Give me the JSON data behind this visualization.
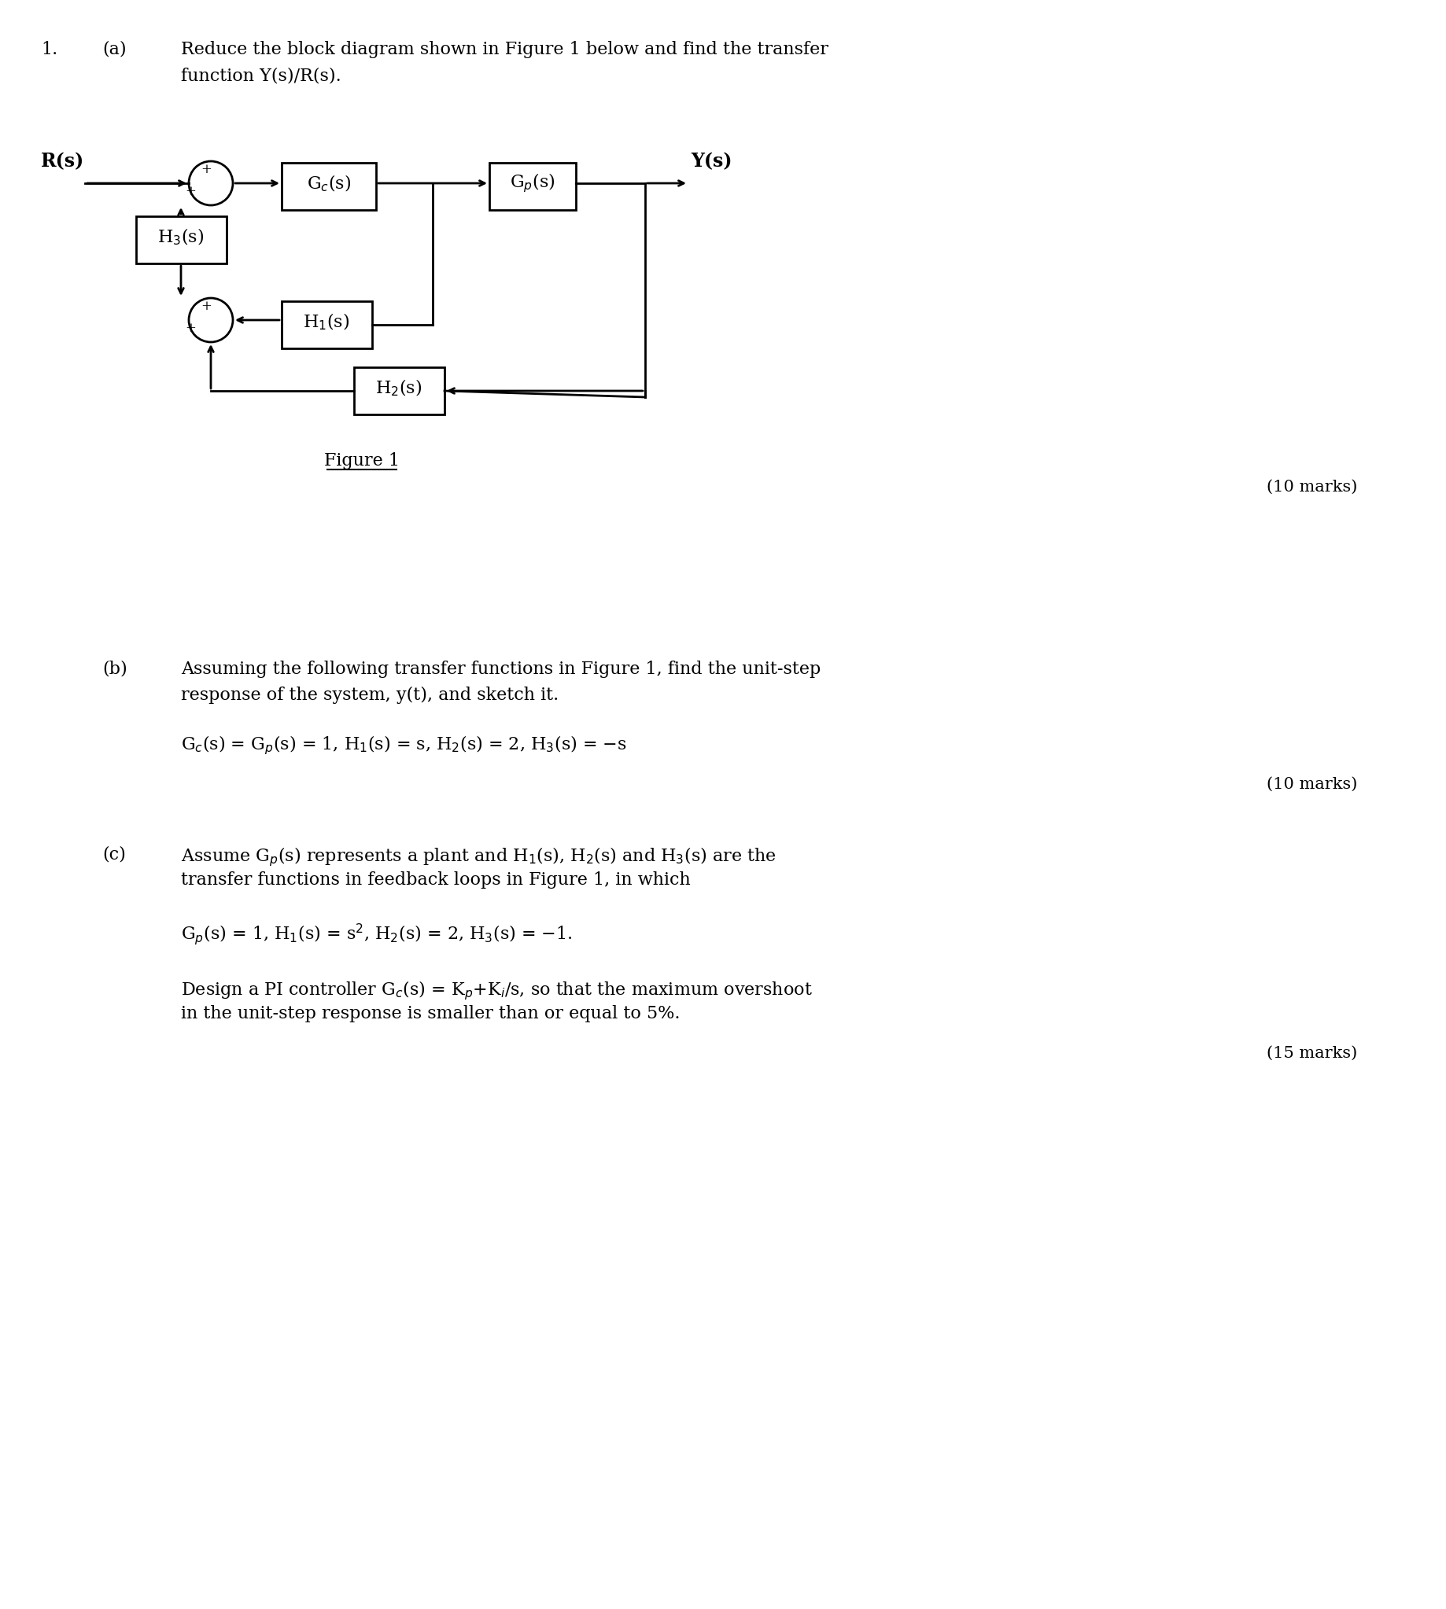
{
  "bg_color": "#ffffff",
  "q_num": "1.",
  "part_a_label": "(a)",
  "part_a_line1": "Reduce the block diagram shown in Figure 1 below and find the transfer",
  "part_a_line2": "function Y(s)/R(s).",
  "part_a_marks": "(10 marks)",
  "part_b_label": "(b)",
  "part_b_line1": "Assuming the following transfer functions in Figure 1, find the unit-step",
  "part_b_line2": "response of the system, y(t), and sketch it.",
  "part_b_eq": "G_c(s) = G_p(s) = 1, H_1(s) = s, H_2(s) = 2, H_3(s) = −s",
  "part_b_marks": "(10 marks)",
  "part_c_label": "(c)",
  "part_c_line1": "Assume G_p(s) represents a plant and H_1(s), H_2(s) and H_3(s) are the",
  "part_c_line2": "transfer functions in feedback loops in Figure 1, in which",
  "part_c_eq": "G_p(s) = 1, H_1(s) = s², H_2(s) = 2, H_3(s) = −1.",
  "part_c_text2a": "Design a PI controller G_c(s) = K_p+K_i/s, so that the maximum overshoot",
  "part_c_text2b": "in the unit-step response is smaller than or equal to 5%.",
  "part_c_marks": "(15 marks)",
  "figure_caption": "Figure 1",
  "Rs_label": "R(s)",
  "Ys_label": "Y(s)",
  "Gc_label": "G_c(s)",
  "Gp_label": "G_p(s)",
  "H1_label": "H_1(s)",
  "H2_label": "H_2(s)",
  "H3_label": "H_3(s)"
}
